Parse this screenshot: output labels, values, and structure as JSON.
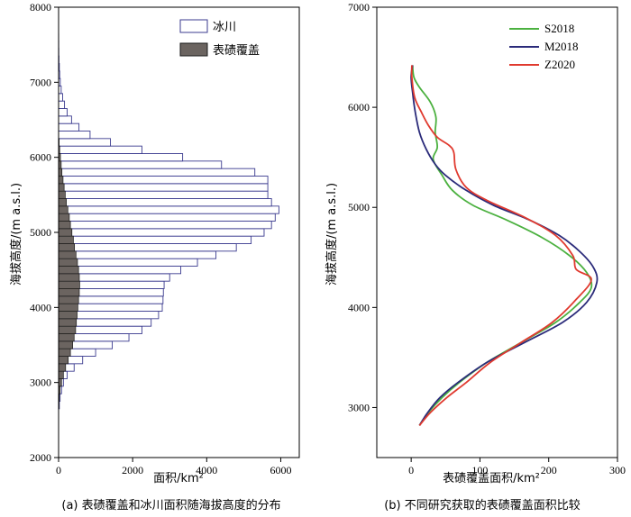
{
  "chart_data": [
    {
      "type": "bar",
      "orientation": "horizontal",
      "caption": "(a) 表碛覆盖和冰川面积随海拔高度的分布",
      "xlabel": "面积/km²",
      "ylabel": "海拔高度/(m a.s.l.)",
      "xlim": [
        0,
        6500
      ],
      "ylim": [
        2000,
        8000
      ],
      "xticks": [
        "0",
        "2000",
        "4000",
        "6000"
      ],
      "yticks": [
        "2000",
        "3000",
        "4000",
        "5000",
        "6000",
        "7000",
        "8000"
      ],
      "bin_size": 100,
      "legend_position": "top-right",
      "series": [
        {
          "name": "冰川",
          "color": "#3b3b8f",
          "fill": "#ffffff",
          "y": [
            2700,
            2800,
            2900,
            3000,
            3100,
            3200,
            3300,
            3400,
            3500,
            3600,
            3700,
            3800,
            3900,
            4000,
            4100,
            4200,
            4300,
            4400,
            4500,
            4600,
            4700,
            4800,
            4900,
            5000,
            5100,
            5200,
            5300,
            5400,
            5500,
            5600,
            5700,
            5800,
            5900,
            6000,
            6100,
            6200,
            6300,
            6400,
            6500,
            6600,
            6700,
            6800,
            6900,
            7000,
            7100,
            7200,
            7300,
            7400,
            7500,
            7600
          ],
          "values": [
            20,
            40,
            80,
            130,
            230,
            420,
            650,
            1000,
            1450,
            1900,
            2250,
            2500,
            2700,
            2800,
            2820,
            2830,
            2850,
            3000,
            3300,
            3750,
            4250,
            4800,
            5200,
            5550,
            5750,
            5850,
            5950,
            5750,
            5650,
            5650,
            5650,
            5300,
            4400,
            3350,
            2250,
            1400,
            850,
            550,
            350,
            230,
            160,
            110,
            70,
            45,
            30,
            20,
            10,
            5,
            3,
            2
          ]
        },
        {
          "name": "表碛覆盖",
          "color": "#1a1a1a",
          "fill": "#6b6460",
          "y": [
            2700,
            2800,
            2900,
            3000,
            3100,
            3200,
            3300,
            3400,
            3500,
            3600,
            3700,
            3800,
            3900,
            4000,
            4100,
            4200,
            4300,
            4400,
            4500,
            4600,
            4700,
            4800,
            4900,
            5000,
            5100,
            5200,
            5300,
            5400,
            5500,
            5600,
            5700,
            5800,
            5900,
            6000,
            6100,
            6200
          ],
          "values": [
            10,
            20,
            40,
            80,
            130,
            190,
            260,
            320,
            380,
            420,
            460,
            480,
            500,
            520,
            540,
            560,
            570,
            560,
            540,
            510,
            470,
            430,
            400,
            360,
            320,
            290,
            250,
            210,
            180,
            150,
            120,
            90,
            70,
            50,
            30,
            15
          ]
        }
      ]
    },
    {
      "type": "line",
      "caption": "(b) 不同研究获取的表碛覆盖面积比较",
      "xlabel": "表碛覆盖面积/km²",
      "ylabel": "海拔高度/(m a.s.l.)",
      "xlim": [
        -50,
        300
      ],
      "ylim": [
        2500,
        7000
      ],
      "xticks": [
        "0",
        "100",
        "200",
        "300"
      ],
      "yticks": [
        "3000",
        "4000",
        "5000",
        "6000",
        "7000"
      ],
      "legend_position": "top-right",
      "series": [
        {
          "name": "S2018",
          "color": "#4cb140",
          "points": [
            [
              12,
              2820
            ],
            [
              25,
              2950
            ],
            [
              45,
              3100
            ],
            [
              70,
              3250
            ],
            [
              110,
              3450
            ],
            [
              160,
              3650
            ],
            [
              210,
              3850
            ],
            [
              245,
              4050
            ],
            [
              262,
              4200
            ],
            [
              255,
              4350
            ],
            [
              230,
              4520
            ],
            [
              190,
              4700
            ],
            [
              140,
              4870
            ],
            [
              90,
              5020
            ],
            [
              60,
              5170
            ],
            [
              45,
              5320
            ],
            [
              32,
              5480
            ],
            [
              38,
              5600
            ],
            [
              35,
              5750
            ],
            [
              36,
              5900
            ],
            [
              28,
              6050
            ],
            [
              12,
              6200
            ],
            [
              4,
              6300
            ],
            [
              2,
              6420
            ]
          ]
        },
        {
          "name": "M2018",
          "color": "#2b2b7a",
          "points": [
            [
              12,
              2820
            ],
            [
              24,
              2950
            ],
            [
              42,
              3100
            ],
            [
              68,
              3250
            ],
            [
              110,
              3450
            ],
            [
              165,
              3650
            ],
            [
              220,
              3850
            ],
            [
              255,
              4050
            ],
            [
              270,
              4250
            ],
            [
              265,
              4400
            ],
            [
              245,
              4560
            ],
            [
              215,
              4720
            ],
            [
              170,
              4880
            ],
            [
              120,
              5020
            ],
            [
              80,
              5170
            ],
            [
              50,
              5320
            ],
            [
              35,
              5430
            ],
            [
              22,
              5580
            ],
            [
              12,
              5750
            ],
            [
              6,
              5950
            ],
            [
              2,
              6150
            ],
            [
              0,
              6300
            ],
            [
              2,
              6420
            ]
          ]
        },
        {
          "name": "Z2020",
          "color": "#e03a2f",
          "points": [
            [
              12,
              2820
            ],
            [
              28,
              2950
            ],
            [
              52,
              3100
            ],
            [
              80,
              3250
            ],
            [
              115,
              3450
            ],
            [
              160,
              3650
            ],
            [
              205,
              3850
            ],
            [
              240,
              4080
            ],
            [
              262,
              4280
            ],
            [
              240,
              4380
            ],
            [
              235,
              4520
            ],
            [
              210,
              4720
            ],
            [
              165,
              4900
            ],
            [
              110,
              5070
            ],
            [
              80,
              5200
            ],
            [
              65,
              5380
            ],
            [
              62,
              5550
            ],
            [
              55,
              5620
            ],
            [
              38,
              5700
            ],
            [
              25,
              5820
            ],
            [
              15,
              5950
            ],
            [
              5,
              6100
            ],
            [
              1,
              6300
            ],
            [
              1,
              6420
            ]
          ]
        }
      ]
    }
  ]
}
